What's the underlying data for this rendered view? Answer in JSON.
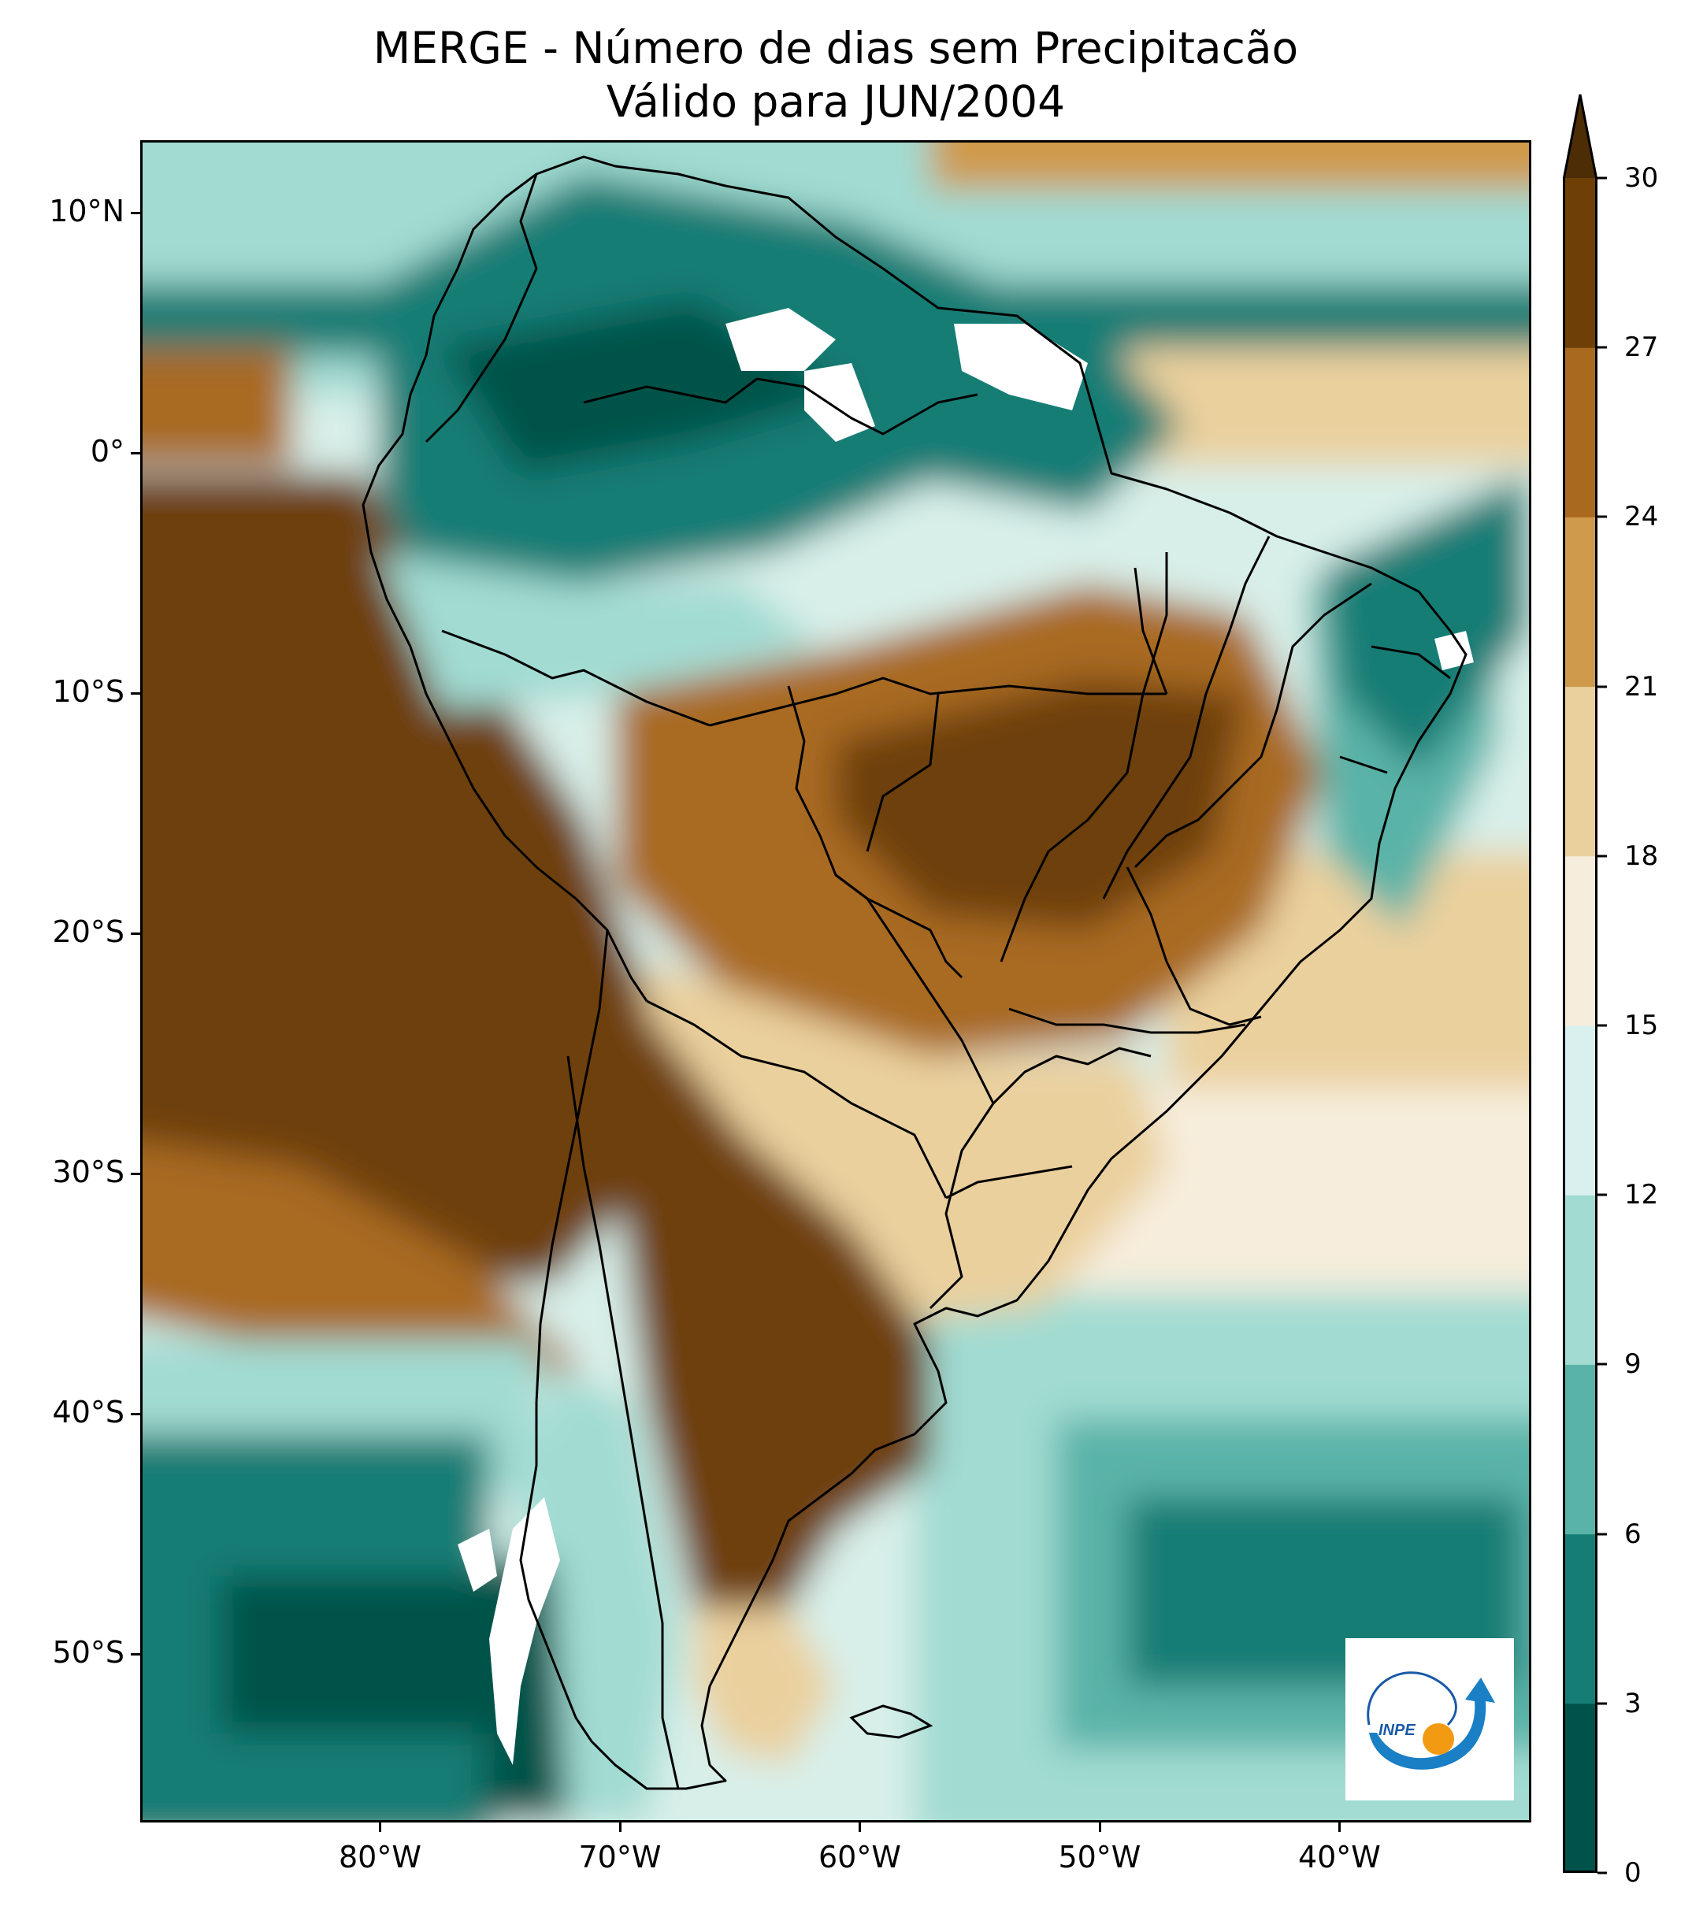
{
  "title": {
    "line1": "MERGE - Número de dias sem Precipitacão",
    "line2": "Válido para JUN/2004"
  },
  "map": {
    "extent": {
      "lon_min": -90,
      "lon_max": -32,
      "lat_min": -57,
      "lat_max": 13
    },
    "lat_ticks": [
      {
        "value": 10,
        "label": "10°N"
      },
      {
        "value": 0,
        "label": "0°"
      },
      {
        "value": -10,
        "label": "10°S"
      },
      {
        "value": -20,
        "label": "20°S"
      },
      {
        "value": -30,
        "label": "30°S"
      },
      {
        "value": -40,
        "label": "40°S"
      },
      {
        "value": -50,
        "label": "50°S"
      }
    ],
    "lon_ticks": [
      {
        "value": -80,
        "label": "80°W"
      },
      {
        "value": -70,
        "label": "70°W"
      },
      {
        "value": -60,
        "label": "60°W"
      },
      {
        "value": -50,
        "label": "50°W"
      },
      {
        "value": -40,
        "label": "40°W"
      }
    ]
  },
  "colorbar": {
    "levels": [
      0,
      3,
      6,
      9,
      12,
      15,
      18,
      21,
      24,
      27,
      30
    ],
    "labels": [
      "0",
      "3",
      "6",
      "9",
      "12",
      "15",
      "18",
      "21",
      "24",
      "27",
      "30"
    ],
    "colors": [
      "#01524a",
      "#157d74",
      "#5ab3a8",
      "#a1dbd2",
      "#d9f0ee",
      "#f6eddc",
      "#ead09d",
      "#cf9a4b",
      "#a96a20",
      "#6e4007"
    ],
    "extend_color": "#4c2d05",
    "extend": "max"
  },
  "logo": {
    "text": "INPE"
  }
}
